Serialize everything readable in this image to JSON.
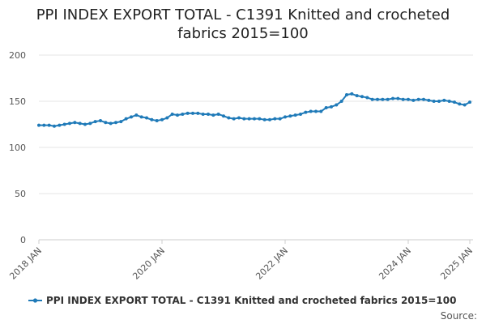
{
  "chart_data": {
    "type": "line",
    "title_lines": [
      "PPI INDEX EXPORT TOTAL - C1391 Knitted and crocheted",
      "fabrics 2015=100"
    ],
    "xlabel": "",
    "ylabel": "",
    "ylim": [
      0,
      200
    ],
    "yticks": [
      0,
      50,
      100,
      150,
      200
    ],
    "x_start": "2018-01",
    "xticks": [
      {
        "label": "2018 JAN",
        "date": "2018-01"
      },
      {
        "label": "2020 JAN",
        "date": "2020-01"
      },
      {
        "label": "2022 JAN",
        "date": "2022-01"
      },
      {
        "label": "2024 JAN",
        "date": "2024-01"
      },
      {
        "label": "2025 JAN",
        "date": "2025-01"
      }
    ],
    "grid": true,
    "legend_position": "bottom",
    "source_label": "Source:",
    "series": [
      {
        "name": "PPI INDEX EXPORT TOTAL - C1391 Knitted and crocheted fabrics 2015=100",
        "color": "#1f7ab8",
        "values": [
          124,
          124,
          124,
          123,
          124,
          125,
          126,
          127,
          126,
          125,
          126,
          128,
          129,
          127,
          126,
          127,
          128,
          131,
          133,
          135,
          133,
          132,
          130,
          129,
          130,
          132,
          136,
          135,
          136,
          137,
          137,
          137,
          136,
          136,
          135,
          136,
          134,
          132,
          131,
          132,
          131,
          131,
          131,
          131,
          130,
          130,
          131,
          131,
          133,
          134,
          135,
          136,
          138,
          139,
          139,
          139,
          143,
          144,
          146,
          150,
          157,
          158,
          156,
          155,
          154,
          152,
          152,
          152,
          152,
          153,
          153,
          152,
          152,
          151,
          152,
          152,
          151,
          150,
          150,
          151,
          150,
          149,
          147,
          146,
          149
        ]
      }
    ]
  }
}
